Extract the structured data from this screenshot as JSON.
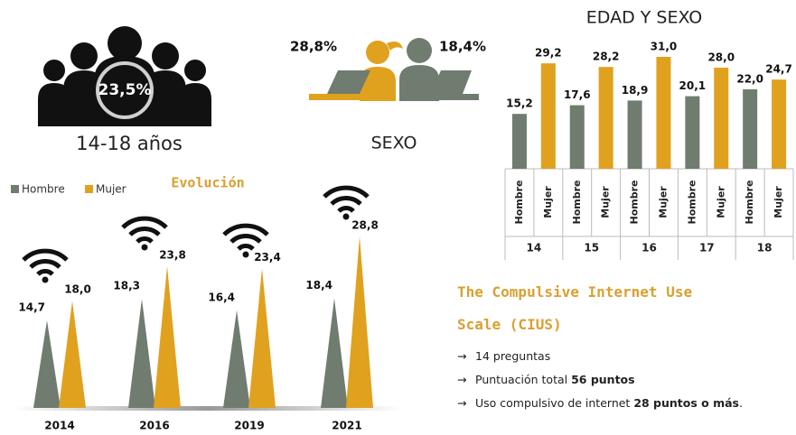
{
  "header": {
    "people_pct": "23,5%",
    "age_range": "14-18 años",
    "female_pct": "28,8%",
    "male_pct": "18,4%",
    "sex_label": "SEXO"
  },
  "chart_data": [
    {
      "type": "bar",
      "title": "EDAD Y SEXO",
      "categories": [
        "14",
        "15",
        "16",
        "17",
        "18"
      ],
      "series": [
        {
          "name": "Hombre",
          "color": "#6f7c6f",
          "values": [
            15.2,
            17.6,
            18.9,
            20.1,
            22.0
          ],
          "value_labels": [
            "15,2",
            "17,6",
            "18,9",
            "20,1",
            "22,0"
          ]
        },
        {
          "name": "Mujer",
          "color": "#e0a11e",
          "values": [
            29.2,
            28.2,
            31.0,
            28.0,
            24.7
          ],
          "value_labels": [
            "29,2",
            "28,2",
            "31,0",
            "28,0",
            "24,7"
          ]
        }
      ]
    },
    {
      "type": "triangle",
      "title": "Evolución",
      "categories": [
        "2014",
        "2016",
        "2019",
        "2021"
      ],
      "legend": "top-left",
      "series": [
        {
          "name": "Hombre",
          "color": "#6f7c6f",
          "values": [
            14.7,
            18.3,
            16.4,
            18.4
          ],
          "value_labels": [
            "14,7",
            "18,3",
            "16,4",
            "18,4"
          ]
        },
        {
          "name": "Mujer",
          "color": "#e0a11e",
          "values": [
            18.0,
            23.8,
            23.4,
            28.8
          ],
          "value_labels": [
            "18,0",
            "23,8",
            "23,4",
            "28,8"
          ]
        }
      ]
    }
  ],
  "cius": {
    "title": "The Compulsive Internet Use Scale (CIUS)",
    "bullets": [
      {
        "text": "14 preguntas"
      },
      {
        "text": "Puntuación total ",
        "bold": "56 puntos"
      },
      {
        "text": "Uso compulsivo de internet  ",
        "bold": "28 puntos o más",
        "end": "."
      }
    ]
  }
}
